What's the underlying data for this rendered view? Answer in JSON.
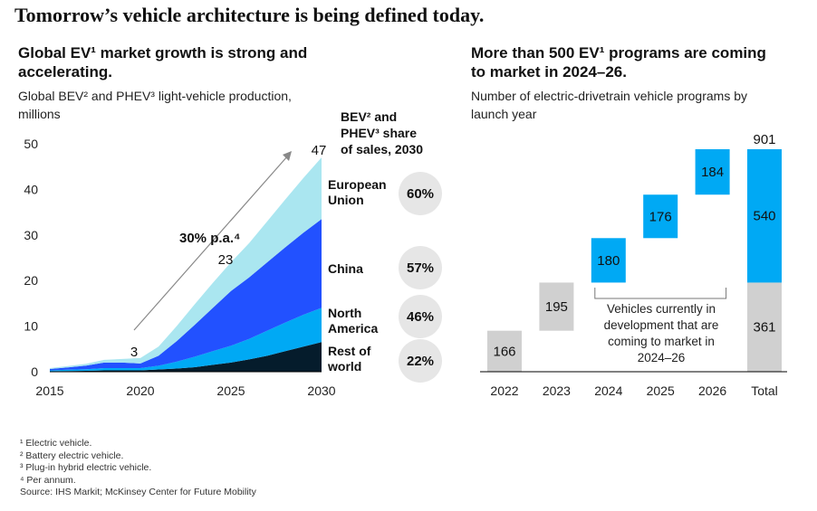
{
  "title": "Tomorrow’s vehicle architecture is being defined today.",
  "left": {
    "subtitle_line1": "Global EV¹ market growth is strong and",
    "subtitle_line2": "accelerating.",
    "desc_line1": "Global BEV² and PHEV³ light-vehicle production,",
    "desc_line2": "millions",
    "share_header_line1": "BEV² and",
    "share_header_line2": "PHEV³ share",
    "share_header_line3": "of sales, 2030",
    "growth_label": "30% p.a.⁴",
    "regions": [
      {
        "label_line1": "European",
        "label_line2": "Union",
        "share": "60%"
      },
      {
        "label_line1": "China",
        "label_line2": "",
        "share": "57%"
      },
      {
        "label_line1": "North",
        "label_line2": "America",
        "share": "46%"
      },
      {
        "label_line1": "Rest of",
        "label_line2": "world",
        "share": "22%"
      }
    ]
  },
  "right": {
    "subtitle_line1": "More than 500 EV¹ programs are coming",
    "subtitle_line2": "to market in 2024–26.",
    "desc_line1": "Number of electric-drivetrain vehicle programs by",
    "desc_line2": "launch year",
    "note_line1": "Vehicles currently in",
    "note_line2": "development that are",
    "note_line3": "coming to market in",
    "note_line4": "2024–26"
  },
  "footnotes": {
    "f1": "¹ Electric vehicle.",
    "f2": "² Battery electric vehicle.",
    "f3": "³ Plug-in hybrid electric vehicle.",
    "f4": "⁴ Per annum.",
    "source": "Source: IHS Markit; McKinsey Center for Future Mobility"
  },
  "colors": {
    "rest_of_world": "#051c2c",
    "north_america": "#00a9f4",
    "china": "#2251ff",
    "european_union": "#aae6f0",
    "waterfall_new": "#00a9f4",
    "waterfall_existing": "#d0d0d0",
    "arrow": "#888888"
  },
  "chart_data": [
    {
      "type": "area",
      "stacked": true,
      "x": [
        2015,
        2016,
        2017,
        2018,
        2019,
        2020,
        2021,
        2022,
        2023,
        2024,
        2025,
        2026,
        2027,
        2028,
        2029,
        2030
      ],
      "series": [
        {
          "name": "Rest of world",
          "values": [
            0.1,
            0.15,
            0.2,
            0.3,
            0.3,
            0.3,
            0.5,
            0.7,
            1.0,
            1.5,
            2.0,
            2.7,
            3.5,
            4.5,
            5.5,
            6.5
          ]
        },
        {
          "name": "North America",
          "values": [
            0.2,
            0.3,
            0.35,
            0.5,
            0.5,
            0.5,
            0.8,
            1.5,
            2.3,
            3.0,
            3.7,
            4.5,
            5.5,
            6.3,
            7.0,
            7.5
          ]
        },
        {
          "name": "China",
          "values": [
            0.3,
            0.5,
            0.8,
            1.2,
            1.2,
            1.0,
            2.2,
            4.5,
            7.0,
            9.5,
            12.0,
            13.5,
            15.0,
            16.5,
            18.0,
            19.5
          ]
        },
        {
          "name": "European Union",
          "values": [
            0.2,
            0.3,
            0.4,
            0.6,
            0.8,
            1.2,
            2.0,
            3.3,
            4.5,
            5.5,
            6.3,
            7.5,
            9.0,
            10.5,
            12.0,
            13.5
          ]
        }
      ],
      "annotations": [
        {
          "x": 2020,
          "text": "3"
        },
        {
          "x": 2025,
          "text": "23"
        },
        {
          "x": 2030,
          "text": "47"
        }
      ],
      "xticks": [
        2015,
        2020,
        2025,
        2030
      ],
      "yticks": [
        0,
        10,
        20,
        30,
        40,
        50
      ],
      "xlim": [
        2015,
        2030
      ],
      "ylim": [
        0,
        50
      ],
      "grid": false
    },
    {
      "type": "bar",
      "subtype": "waterfall",
      "categories": [
        "2022",
        "2023",
        "2024",
        "2025",
        "2026",
        "Total"
      ],
      "values": [
        166,
        195,
        180,
        176,
        184,
        901
      ],
      "total_breakdown": [
        {
          "part": "new",
          "value": 540
        },
        {
          "part": "existing",
          "value": 361
        }
      ],
      "ylim": [
        0,
        901
      ]
    }
  ]
}
